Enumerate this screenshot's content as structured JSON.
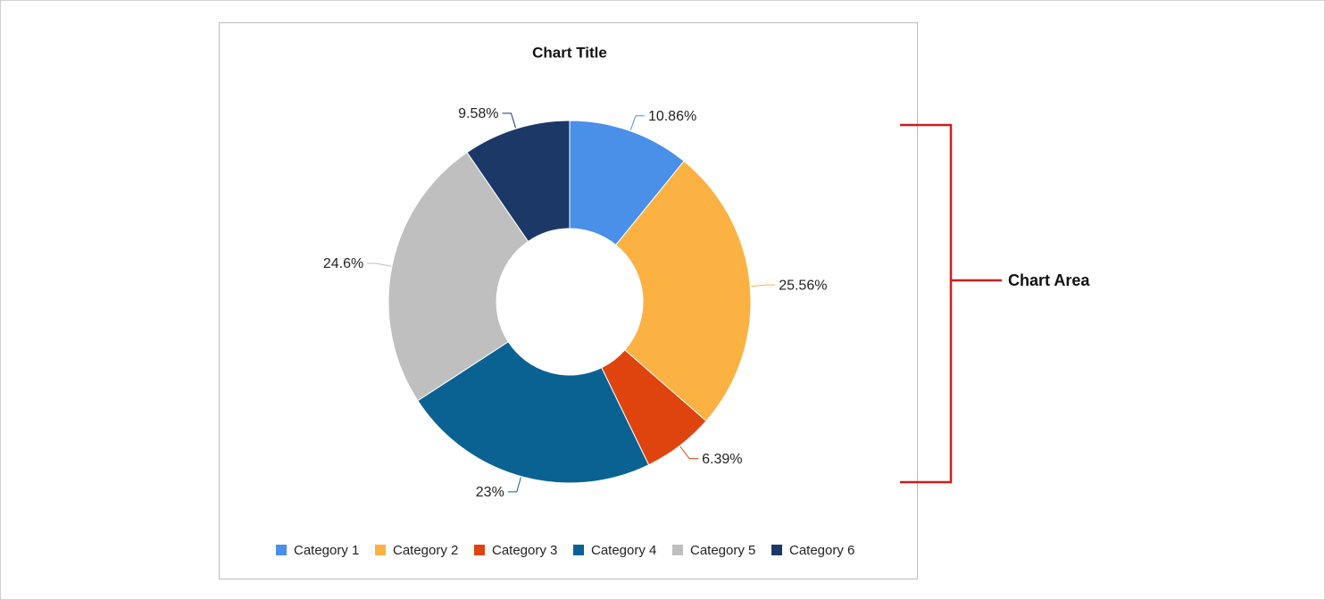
{
  "chart_data": {
    "type": "donut",
    "title": "Chart Title",
    "categories": [
      "Category 1",
      "Category 2",
      "Category 3",
      "Category 4",
      "Category 5",
      "Category 6"
    ],
    "values": [
      10.86,
      25.56,
      6.39,
      23,
      24.6,
      9.58
    ],
    "value_labels": [
      "10.86%",
      "25.56%",
      "6.39%",
      "23%",
      "24.6%",
      "9.58%"
    ],
    "colors": [
      "#4a8fe8",
      "#fbb243",
      "#e0440e",
      "#0a6293",
      "#bfbfc0",
      "#1b3867"
    ],
    "legend": "bottom",
    "annotation": "Chart Area"
  }
}
